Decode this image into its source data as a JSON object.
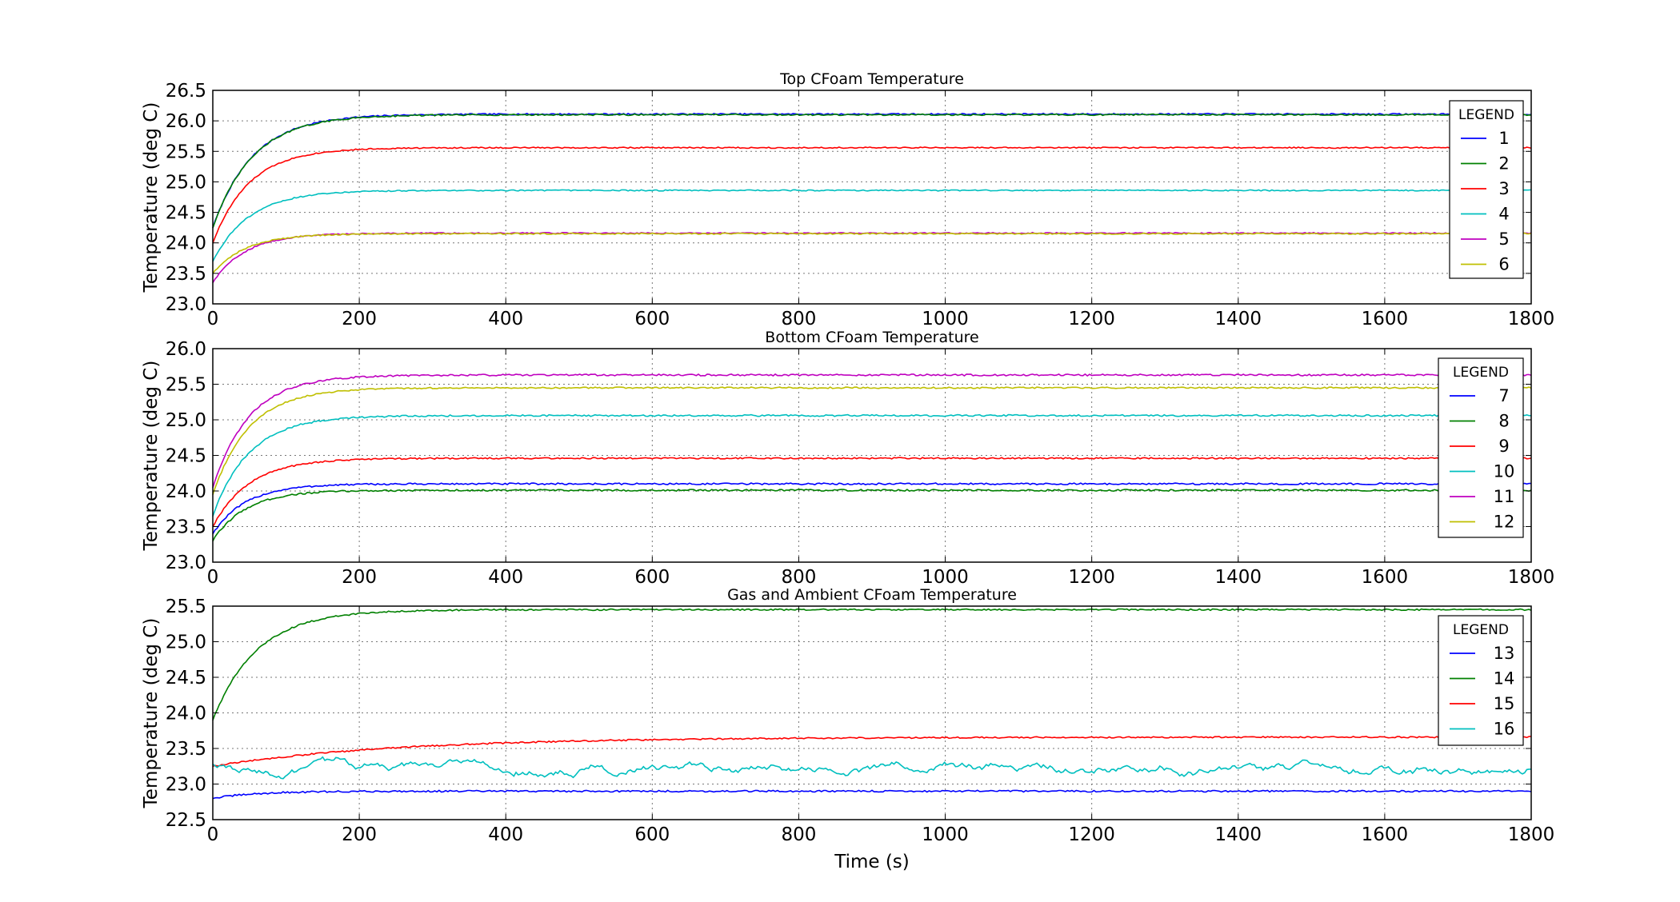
{
  "chart_data": [
    {
      "type": "line",
      "title": "Top CFoam Temperature",
      "xlabel": "",
      "ylabel": "Temperature (deg C)",
      "xlim": [
        0,
        1800
      ],
      "ylim": [
        23.0,
        26.5
      ],
      "xticks": [
        "0",
        "200",
        "400",
        "600",
        "800",
        "1000",
        "1200",
        "1400",
        "1600",
        "1800"
      ],
      "yticks": [
        "23.0",
        "23.5",
        "24.0",
        "24.5",
        "25.0",
        "25.5",
        "26.0",
        "26.5"
      ],
      "grid": true,
      "legend": {
        "title": "LEGEND",
        "placement": "right"
      },
      "series": [
        {
          "name": "1",
          "color": "#0000ff",
          "start": 24.25,
          "end": 26.11,
          "tau": 55,
          "noise": 0.012
        },
        {
          "name": "2",
          "color": "#008000",
          "start": 24.25,
          "end": 26.1,
          "tau": 55,
          "noise": 0.012
        },
        {
          "name": "3",
          "color": "#ff0000",
          "start": 24.0,
          "end": 25.56,
          "tau": 50,
          "noise": 0.01
        },
        {
          "name": "4",
          "color": "#00bfbf",
          "start": 23.7,
          "end": 24.86,
          "tau": 50,
          "noise": 0.01
        },
        {
          "name": "5",
          "color": "#bf00bf",
          "start": 23.35,
          "end": 24.16,
          "tau": 45,
          "noise": 0.01
        },
        {
          "name": "6",
          "color": "#bfbf00",
          "start": 23.5,
          "end": 24.15,
          "tau": 45,
          "noise": 0.01
        }
      ]
    },
    {
      "type": "line",
      "title": "Bottom CFoam Temperature",
      "xlabel": "",
      "ylabel": "Temperature (deg C)",
      "xlim": [
        0,
        1800
      ],
      "ylim": [
        23.0,
        26.0
      ],
      "xticks": [
        "0",
        "200",
        "400",
        "600",
        "800",
        "1000",
        "1200",
        "1400",
        "1600",
        "1800"
      ],
      "yticks": [
        "23.0",
        "23.5",
        "24.0",
        "24.5",
        "25.0",
        "25.5",
        "26.0"
      ],
      "grid": true,
      "legend": {
        "title": "LEGEND",
        "placement": "right"
      },
      "series": [
        {
          "name": "7",
          "color": "#0000ff",
          "start": 23.4,
          "end": 24.1,
          "tau": 45,
          "noise": 0.012
        },
        {
          "name": "8",
          "color": "#008000",
          "start": 23.3,
          "end": 24.01,
          "tau": 45,
          "noise": 0.012
        },
        {
          "name": "9",
          "color": "#ff0000",
          "start": 23.5,
          "end": 24.46,
          "tau": 50,
          "noise": 0.01
        },
        {
          "name": "10",
          "color": "#00bfbf",
          "start": 23.65,
          "end": 25.06,
          "tau": 50,
          "noise": 0.012
        },
        {
          "name": "11",
          "color": "#bf00bf",
          "start": 24.05,
          "end": 25.63,
          "tau": 50,
          "noise": 0.012
        },
        {
          "name": "12",
          "color": "#bfbf00",
          "start": 23.95,
          "end": 25.45,
          "tau": 50,
          "noise": 0.01
        }
      ]
    },
    {
      "type": "line",
      "title": "Gas and Ambient CFoam Temperature",
      "xlabel": "Time (s)",
      "ylabel": "Temperature (deg C)",
      "xlim": [
        0,
        1800
      ],
      "ylim": [
        22.5,
        25.5
      ],
      "xticks": [
        "0",
        "200",
        "400",
        "600",
        "800",
        "1000",
        "1200",
        "1400",
        "1600",
        "1800"
      ],
      "yticks": [
        "22.5",
        "23.0",
        "23.5",
        "24.0",
        "24.5",
        "25.0",
        "25.5"
      ],
      "grid": true,
      "legend": {
        "title": "LEGEND",
        "placement": "right"
      },
      "series": [
        {
          "name": "13",
          "color": "#0000ff",
          "start": 22.8,
          "end": 22.9,
          "tau": 60,
          "noise": 0.012
        },
        {
          "name": "14",
          "color": "#008000",
          "start": 23.9,
          "end": 25.45,
          "tau": 60,
          "noise": 0.01
        },
        {
          "name": "15",
          "color": "#ff0000",
          "start": 23.25,
          "end": 23.66,
          "tau": 250,
          "noise": 0.01
        },
        {
          "name": "16",
          "color": "#00bfbf",
          "start": 23.3,
          "end": 23.22,
          "tau": 30,
          "noise": 0.08
        }
      ]
    }
  ]
}
